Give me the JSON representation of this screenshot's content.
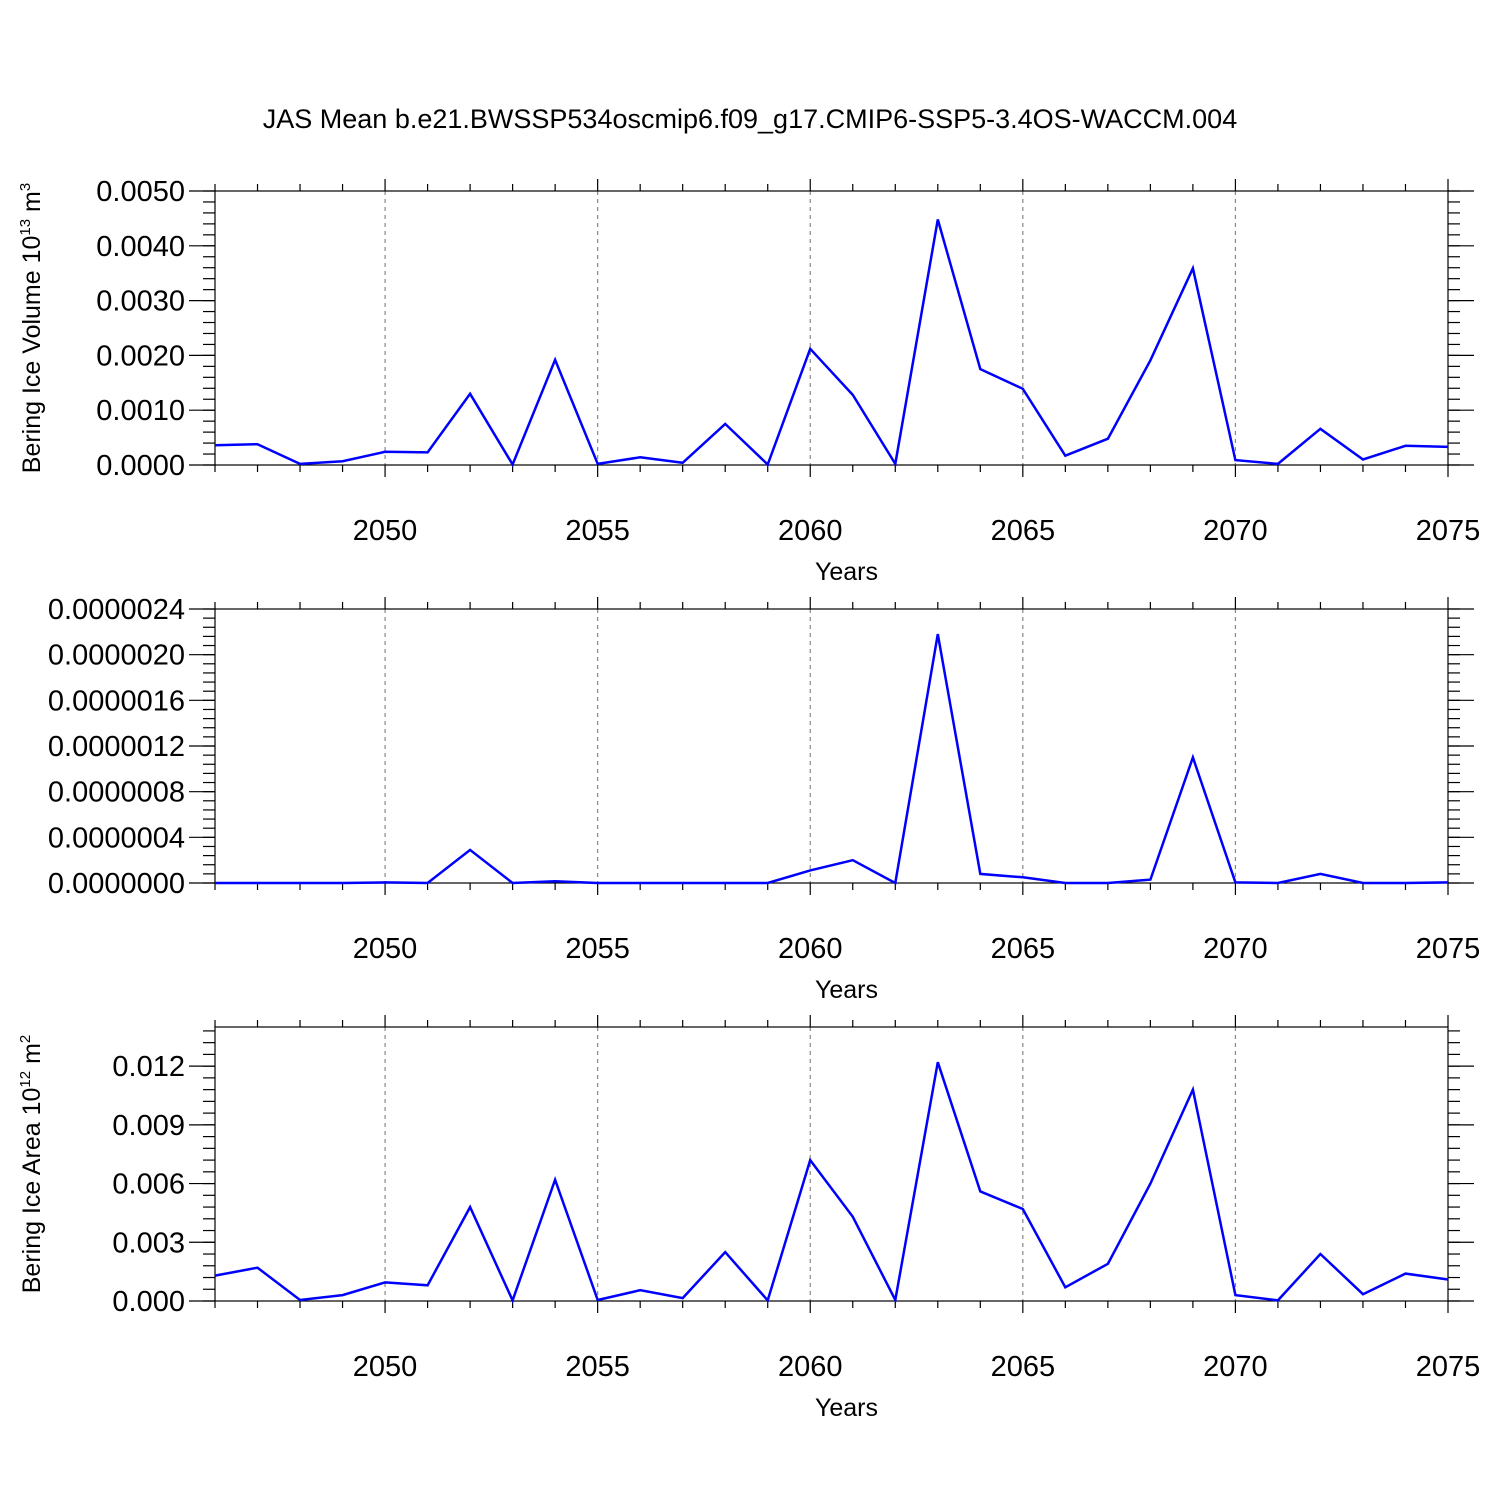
{
  "title": "JAS Mean b.e21.BWSSP534oscmip6.f09_g17.CMIP6-SSP5-3.4OS-WACCM.004",
  "colors": {
    "series": "#0000ff",
    "grid": "#888888",
    "axis": "#000000"
  },
  "chart_data": [
    {
      "type": "line",
      "ylabel": {
        "text": "Bering Ice Volume 10",
        "sup": "13",
        "unit": " m",
        "unit_sup": "3"
      },
      "xlabel": "Years",
      "xlim": [
        2046,
        2075
      ],
      "ylim": [
        0.0,
        0.005
      ],
      "x_ticks": [
        "2050",
        "2055",
        "2060",
        "2065",
        "2070",
        "2075"
      ],
      "y_ticks": [
        "0.0000",
        "0.0010",
        "0.0020",
        "0.0030",
        "0.0040",
        "0.0050"
      ],
      "grid": "vertical dashed",
      "x": [
        2046,
        2047,
        2048,
        2049,
        2050,
        2051,
        2052,
        2053,
        2054,
        2055,
        2056,
        2057,
        2058,
        2059,
        2060,
        2061,
        2062,
        2063,
        2064,
        2065,
        2066,
        2067,
        2068,
        2069,
        2070,
        2071,
        2072,
        2073,
        2074,
        2075
      ],
      "values": [
        0.00036,
        0.00038,
        2e-05,
        7e-05,
        0.00024,
        0.00023,
        0.0013,
        1e-05,
        0.00192,
        2e-05,
        0.00014,
        4e-05,
        0.00075,
        1e-05,
        0.00212,
        0.00128,
        2e-05,
        0.00448,
        0.00175,
        0.00139,
        0.00017,
        0.00048,
        0.00191,
        0.00359,
        9e-05,
        2e-05,
        0.00066,
        0.0001,
        0.00035,
        0.00033
      ]
    },
    {
      "type": "line",
      "ylabel": null,
      "xlabel": "Years",
      "xlim": [
        2046,
        2075
      ],
      "ylim": [
        0.0,
        2.4e-06
      ],
      "x_ticks": [
        "2050",
        "2055",
        "2060",
        "2065",
        "2070",
        "2075"
      ],
      "y_ticks": [
        "0.0000000",
        "0.0000004",
        "0.0000008",
        "0.0000012",
        "0.0000016",
        "0.0000020",
        "0.0000024"
      ],
      "grid": "vertical dashed",
      "x": [
        2046,
        2047,
        2048,
        2049,
        2050,
        2051,
        2052,
        2053,
        2054,
        2055,
        2056,
        2057,
        2058,
        2059,
        2060,
        2061,
        2062,
        2063,
        2064,
        2065,
        2066,
        2067,
        2068,
        2069,
        2070,
        2071,
        2072,
        2073,
        2074,
        2075
      ],
      "values": [
        0.0,
        0.0,
        0.0,
        0.0,
        5e-09,
        0.0,
        2.9e-07,
        0.0,
        1.5e-08,
        0.0,
        0.0,
        0.0,
        0.0,
        0.0,
        1.1e-07,
        2e-07,
        0.0,
        2.18e-06,
        8e-08,
        5e-08,
        0.0,
        0.0,
        3e-08,
        1.1e-06,
        5e-09,
        0.0,
        8e-08,
        0.0,
        0.0,
        5e-09
      ]
    },
    {
      "type": "line",
      "ylabel": {
        "text": "Bering Ice Area 10",
        "sup": "12",
        "unit": " m",
        "unit_sup": "2"
      },
      "xlabel": "Years",
      "xlim": [
        2046,
        2075
      ],
      "ylim": [
        0.0,
        0.014
      ],
      "x_ticks": [
        "2050",
        "2055",
        "2060",
        "2065",
        "2070",
        "2075"
      ],
      "y_ticks": [
        "0.000",
        "0.003",
        "0.006",
        "0.009",
        "0.012"
      ],
      "grid": "vertical dashed",
      "x": [
        2046,
        2047,
        2048,
        2049,
        2050,
        2051,
        2052,
        2053,
        2054,
        2055,
        2056,
        2057,
        2058,
        2059,
        2060,
        2061,
        2062,
        2063,
        2064,
        2065,
        2066,
        2067,
        2068,
        2069,
        2070,
        2071,
        2072,
        2073,
        2074,
        2075
      ],
      "values": [
        0.0013,
        0.0017,
        5e-05,
        0.0003,
        0.00095,
        0.0008,
        0.0048,
        3e-05,
        0.0062,
        5e-05,
        0.00055,
        0.00015,
        0.0025,
        3e-05,
        0.0072,
        0.0043,
        5e-05,
        0.0122,
        0.0056,
        0.0047,
        0.0007,
        0.0019,
        0.006,
        0.0108,
        0.0003,
        3e-05,
        0.0024,
        0.00035,
        0.0014,
        0.0011
      ]
    }
  ]
}
